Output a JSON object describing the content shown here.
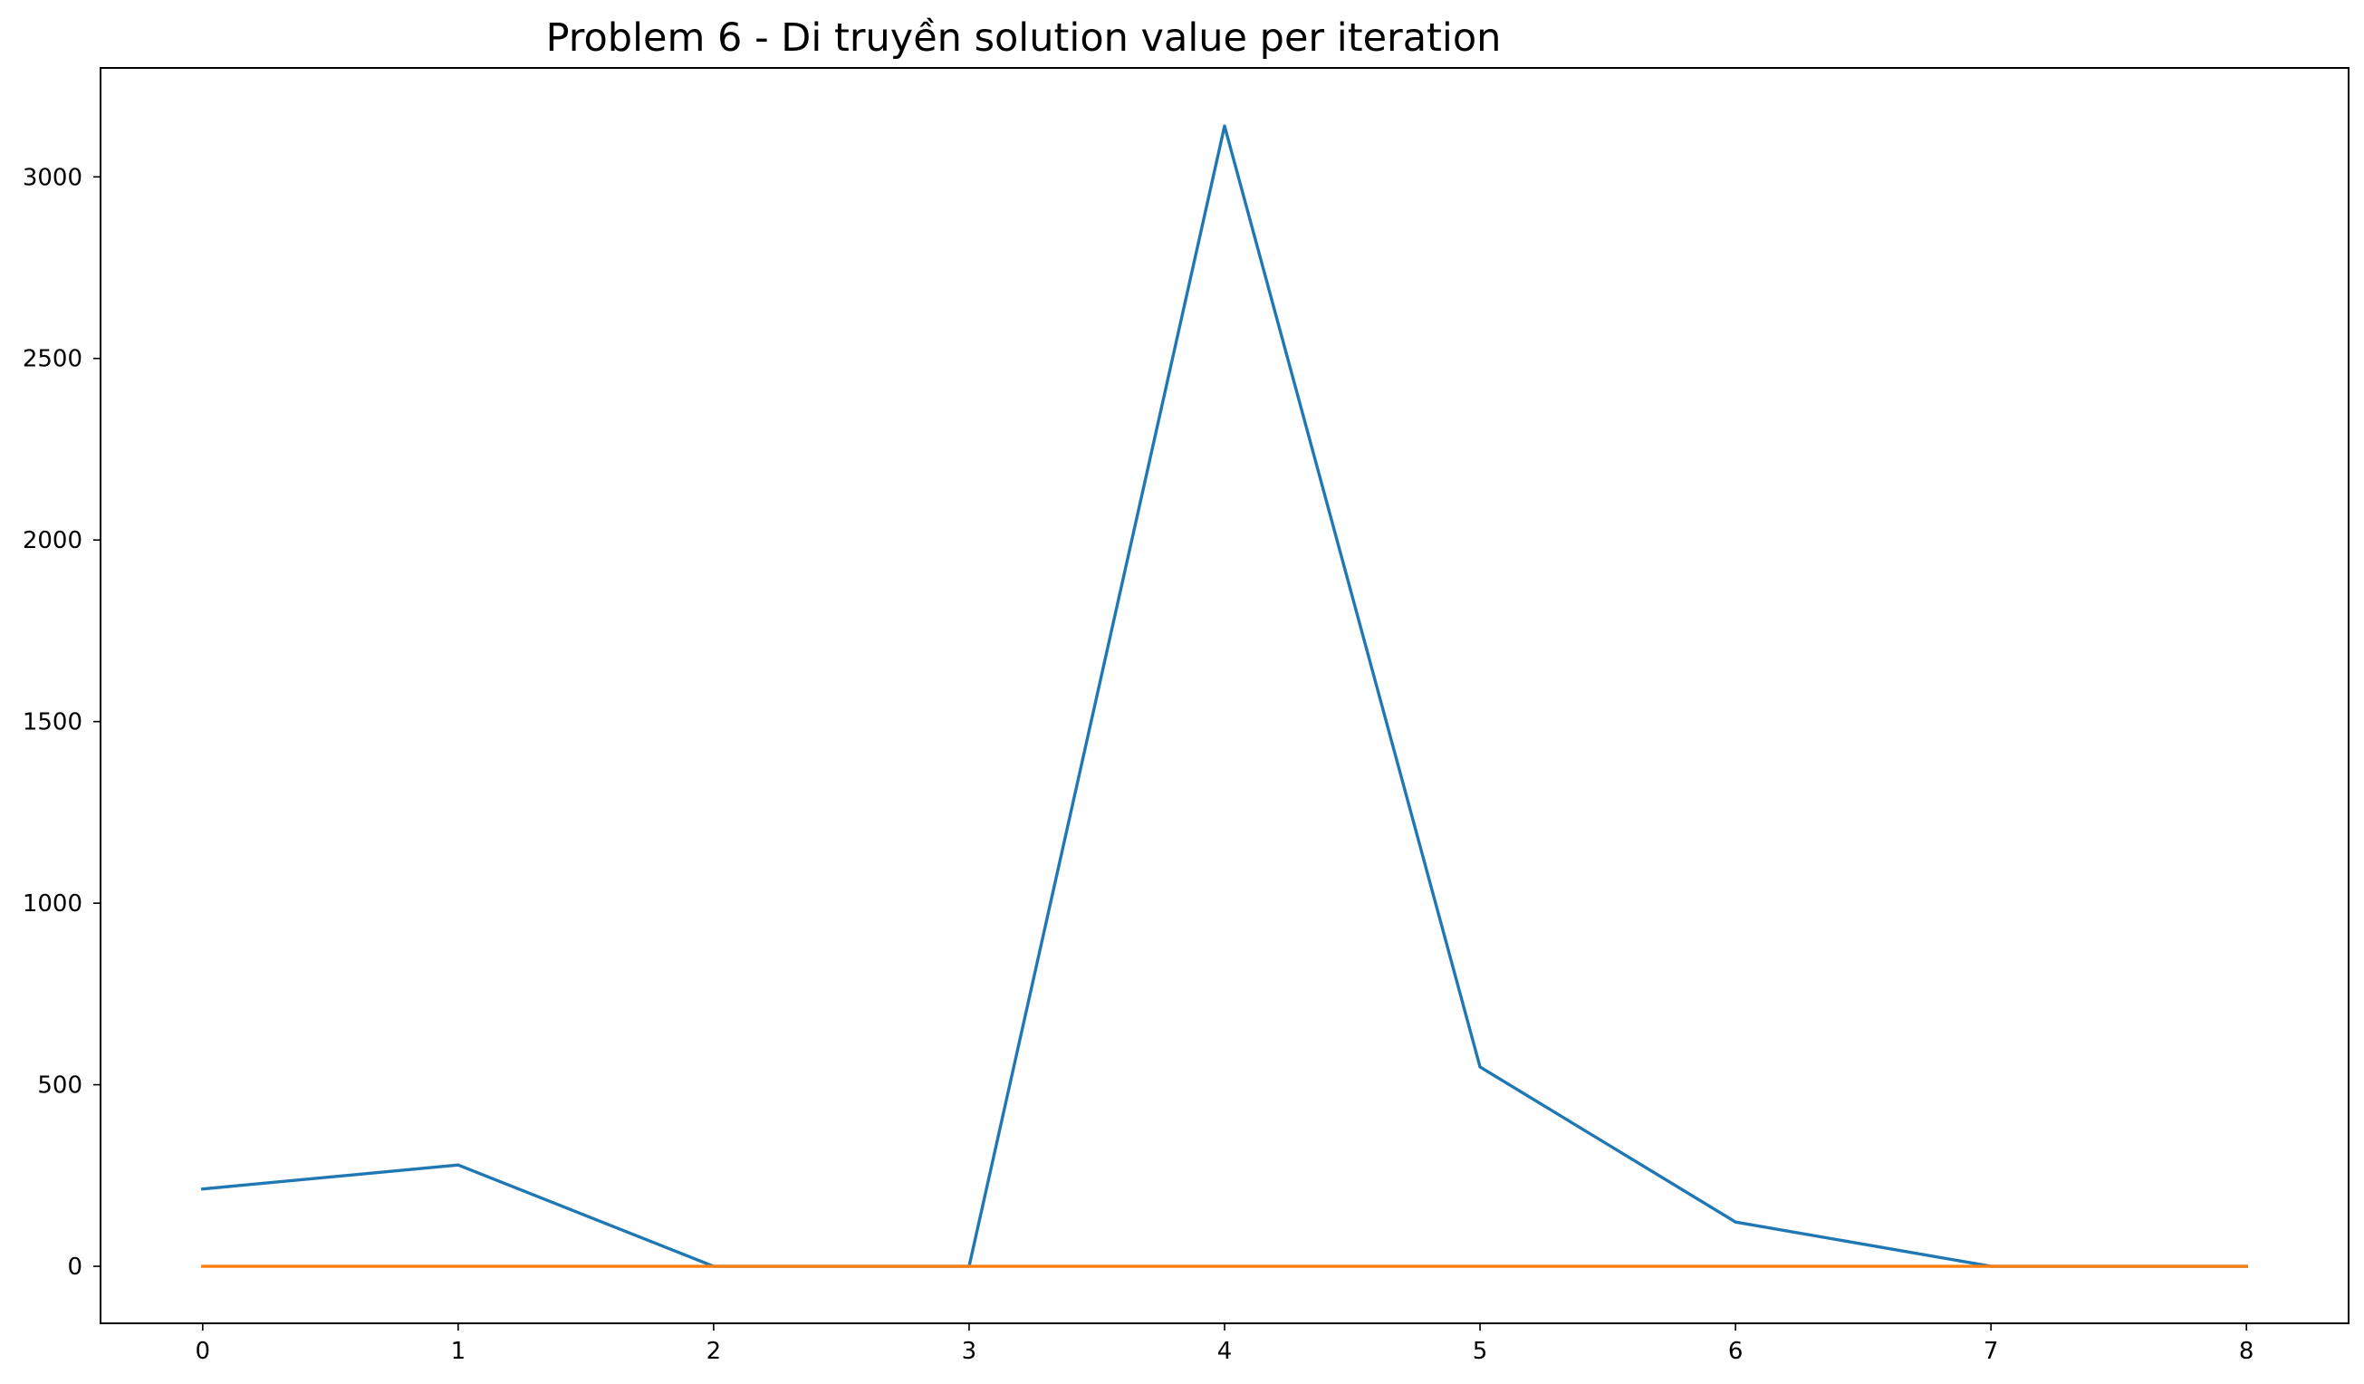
{
  "chart_data": {
    "type": "line",
    "title": "Problem 6 - Di truyền solution value per iteration",
    "xlabel": "",
    "ylabel": "",
    "x": [
      0,
      1,
      2,
      3,
      4,
      5,
      6,
      7,
      8
    ],
    "xticks": [
      0,
      1,
      2,
      3,
      4,
      5,
      6,
      7,
      8
    ],
    "yticks": [
      0,
      500,
      1000,
      1500,
      2000,
      2500,
      3000
    ],
    "xlim": [
      -0.4,
      8.4
    ],
    "ylim": [
      -157,
      3300
    ],
    "grid": false,
    "legend": "none",
    "series": [
      {
        "color": "#1f77b4",
        "values": [
          213,
          279,
          0,
          0,
          3140,
          549,
          122,
          0,
          0
        ]
      },
      {
        "color": "#ff7f0e",
        "values": [
          0,
          0,
          0,
          0,
          0,
          0,
          0,
          0,
          0
        ]
      }
    ]
  }
}
